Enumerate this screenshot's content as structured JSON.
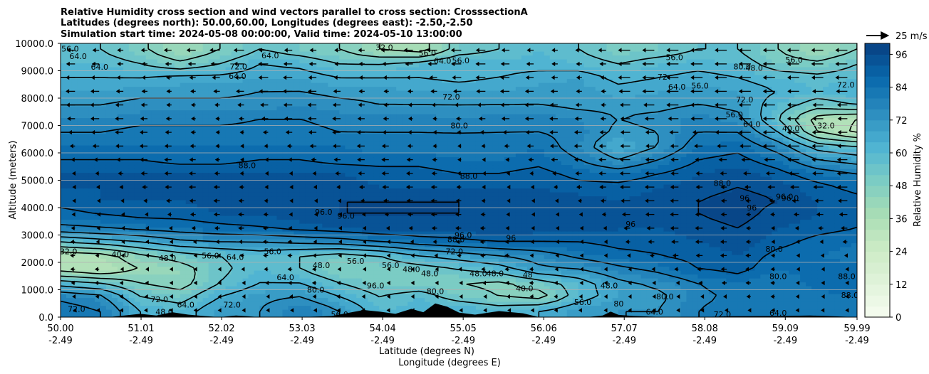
{
  "figure": {
    "title_lines": [
      "Relative Humidity cross section and wind vectors parallel to cross section: CrosssectionA",
      "Latitudes (degrees north): 50.00,60.00, Longitudes (degrees east): -2.50,-2.50",
      "Simulation start time: 2024-05-08 00:00:00, Valid time: 2024-05-10 13:00:00"
    ]
  },
  "chart_data": {
    "type": "heatmap",
    "ylabel": "Altitude (meters)",
    "xlabel_lines": [
      "Latitude (degrees N)",
      "Longitude (degrees E)"
    ],
    "xlim": [
      50.0,
      59.99
    ],
    "ylim": [
      0,
      10000
    ],
    "x_ticks": [
      {
        "lat": "50.00",
        "lon": "-2.49"
      },
      {
        "lat": "51.01",
        "lon": "-2.49"
      },
      {
        "lat": "52.02",
        "lon": "-2.49"
      },
      {
        "lat": "53.03",
        "lon": "-2.49"
      },
      {
        "lat": "54.04",
        "lon": "-2.49"
      },
      {
        "lat": "55.05",
        "lon": "-2.49"
      },
      {
        "lat": "56.06",
        "lon": "-2.49"
      },
      {
        "lat": "57.07",
        "lon": "-2.49"
      },
      {
        "lat": "58.08",
        "lon": "-2.49"
      },
      {
        "lat": "59.09",
        "lon": "-2.49"
      },
      {
        "lat": "59.99",
        "lon": "-2.49"
      }
    ],
    "y_ticks": [
      "0.0",
      "1000.0",
      "2000.0",
      "3000.0",
      "4000.0",
      "5000.0",
      "6000.0",
      "7000.0",
      "8000.0",
      "9000.0",
      "10000.0"
    ],
    "y_tick_values": [
      0,
      1000,
      2000,
      3000,
      4000,
      5000,
      6000,
      7000,
      8000,
      9000,
      10000
    ],
    "grid": "horizontal",
    "colorbar": {
      "label": "Relative Humidity %",
      "ticks": [
        "0",
        "12",
        "24",
        "36",
        "48",
        "60",
        "72",
        "84",
        "96"
      ],
      "tick_values": [
        0,
        12,
        24,
        36,
        48,
        60,
        72,
        84,
        96
      ],
      "range": [
        0,
        100
      ],
      "colors": [
        "#f7fcf0",
        "#e0f3db",
        "#ccebc5",
        "#a8ddb5",
        "#7bccc4",
        "#4eb3d3",
        "#2b8cbe",
        "#0868ac",
        "#084081"
      ]
    },
    "quiver_key": {
      "label": "25 m/s",
      "speed": 25
    },
    "wind_direction": "westward (toward lower latitude)",
    "rh_field": {
      "description_rows_altitude_m": [
        250,
        750,
        1250,
        1750,
        2250,
        2750,
        3250,
        3750,
        4250,
        4750,
        5250,
        5750,
        6250,
        6750,
        7250,
        7750,
        8250,
        8750,
        9250,
        9750
      ],
      "description_cols_lat": [
        50.0,
        50.5,
        51.0,
        51.5,
        52.0,
        52.5,
        53.0,
        53.5,
        54.0,
        54.5,
        55.0,
        55.5,
        56.0,
        56.5,
        57.0,
        57.5,
        58.0,
        58.5,
        59.0,
        59.5,
        59.99
      ],
      "values": [
        [
          84,
          80,
          64,
          60,
          70,
          72,
          80,
          72,
          60,
          62,
          64,
          60,
          64,
          70,
          72,
          72,
          80,
          84,
          82,
          80,
          80
        ],
        [
          78,
          74,
          56,
          52,
          64,
          70,
          72,
          64,
          56,
          60,
          52,
          48,
          44,
          60,
          68,
          70,
          78,
          82,
          80,
          82,
          84
        ],
        [
          60,
          56,
          48,
          44,
          56,
          64,
          64,
          56,
          50,
          50,
          48,
          46,
          52,
          60,
          70,
          74,
          80,
          84,
          80,
          86,
          88
        ],
        [
          36,
          32,
          40,
          44,
          54,
          60,
          56,
          48,
          50,
          52,
          56,
          60,
          70,
          72,
          78,
          82,
          88,
          90,
          84,
          86,
          86
        ],
        [
          34,
          36,
          46,
          52,
          56,
          60,
          56,
          52,
          56,
          64,
          68,
          72,
          76,
          82,
          86,
          88,
          90,
          92,
          86,
          84,
          82
        ],
        [
          56,
          60,
          64,
          70,
          72,
          72,
          74,
          76,
          80,
          84,
          86,
          88,
          88,
          88,
          90,
          90,
          92,
          94,
          90,
          86,
          84
        ],
        [
          78,
          80,
          82,
          84,
          86,
          88,
          90,
          92,
          94,
          94,
          94,
          96,
          94,
          94,
          92,
          92,
          94,
          96,
          92,
          90,
          88
        ],
        [
          86,
          88,
          90,
          90,
          92,
          92,
          94,
          96,
          96,
          96,
          96,
          96,
          96,
          94,
          94,
          94,
          96,
          98,
          94,
          92,
          90
        ],
        [
          90,
          92,
          92,
          92,
          94,
          94,
          96,
          96,
          96,
          96,
          96,
          94,
          94,
          94,
          92,
          94,
          96,
          98,
          96,
          92,
          90
        ],
        [
          92,
          92,
          94,
          94,
          94,
          94,
          94,
          94,
          92,
          92,
          92,
          92,
          92,
          90,
          90,
          92,
          94,
          96,
          94,
          90,
          86
        ],
        [
          92,
          92,
          92,
          92,
          92,
          92,
          92,
          92,
          90,
          90,
          88,
          88,
          90,
          86,
          84,
          88,
          92,
          94,
          90,
          84,
          80
        ],
        [
          88,
          88,
          88,
          86,
          86,
          88,
          88,
          86,
          86,
          86,
          84,
          84,
          86,
          80,
          72,
          80,
          88,
          90,
          84,
          72,
          68
        ],
        [
          84,
          84,
          84,
          84,
          84,
          84,
          84,
          84,
          82,
          82,
          82,
          82,
          84,
          76,
          64,
          72,
          84,
          86,
          76,
          60,
          56
        ],
        [
          80,
          80,
          82,
          82,
          82,
          82,
          82,
          80,
          80,
          80,
          80,
          80,
          80,
          78,
          70,
          72,
          80,
          80,
          64,
          40,
          30
        ],
        [
          76,
          76,
          78,
          78,
          78,
          80,
          80,
          78,
          78,
          78,
          76,
          78,
          78,
          76,
          72,
          74,
          78,
          74,
          56,
          36,
          32
        ],
        [
          72,
          72,
          74,
          74,
          74,
          74,
          76,
          74,
          72,
          72,
          72,
          72,
          72,
          70,
          70,
          70,
          72,
          70,
          60,
          52,
          56
        ],
        [
          68,
          68,
          70,
          70,
          70,
          72,
          72,
          70,
          70,
          68,
          68,
          68,
          70,
          70,
          66,
          68,
          70,
          68,
          64,
          60,
          64
        ],
        [
          64,
          64,
          64,
          66,
          66,
          68,
          68,
          64,
          64,
          64,
          62,
          64,
          66,
          68,
          62,
          64,
          66,
          64,
          60,
          58,
          60
        ],
        [
          60,
          60,
          56,
          50,
          56,
          64,
          62,
          56,
          56,
          60,
          64,
          62,
          62,
          60,
          56,
          60,
          62,
          60,
          52,
          50,
          56
        ],
        [
          56,
          56,
          50,
          40,
          48,
          56,
          52,
          48,
          40,
          36,
          52,
          56,
          60,
          56,
          50,
          52,
          56,
          56,
          48,
          40,
          48
        ]
      ]
    },
    "contour_labels": [
      {
        "text": "64.0",
        "lat": 50.22,
        "alt": 9530
      },
      {
        "text": "64.0",
        "lat": 50.49,
        "alt": 9140
      },
      {
        "text": "56.0",
        "lat": 50.12,
        "alt": 9800
      },
      {
        "text": "72.0",
        "lat": 52.23,
        "alt": 9150
      },
      {
        "text": "64.0",
        "lat": 52.22,
        "alt": 8800
      },
      {
        "text": "64.0",
        "lat": 52.63,
        "alt": 9560
      },
      {
        "text": "32.0",
        "lat": 54.06,
        "alt": 9860
      },
      {
        "text": "56.0",
        "lat": 54.6,
        "alt": 9650
      },
      {
        "text": "64.0",
        "lat": 54.79,
        "alt": 9370
      },
      {
        "text": "56.0",
        "lat": 55.02,
        "alt": 9380
      },
      {
        "text": "72.0",
        "lat": 54.9,
        "alt": 8050
      },
      {
        "text": "80.0",
        "lat": 55.0,
        "alt": 7000
      },
      {
        "text": "72",
        "lat": 57.55,
        "alt": 8780
      },
      {
        "text": "64.0",
        "lat": 57.73,
        "alt": 8410
      },
      {
        "text": "88.0",
        "lat": 58.3,
        "alt": 4900
      },
      {
        "text": "96",
        "lat": 58.58,
        "alt": 4350
      },
      {
        "text": "96",
        "lat": 58.67,
        "alt": 4000
      },
      {
        "text": "96.0",
        "lat": 59.08,
        "alt": 4400
      },
      {
        "text": "72.0",
        "lat": 58.58,
        "alt": 7950
      },
      {
        "text": "64.0",
        "lat": 58.67,
        "alt": 7050
      },
      {
        "text": "56.0",
        "lat": 58.45,
        "alt": 7400
      },
      {
        "text": "40.0",
        "lat": 59.16,
        "alt": 6900
      },
      {
        "text": "32.0",
        "lat": 59.6,
        "alt": 7000
      },
      {
        "text": "88.0",
        "lat": 55.12,
        "alt": 5150
      },
      {
        "text": "88.0",
        "lat": 52.34,
        "alt": 5550
      },
      {
        "text": "96.0",
        "lat": 53.3,
        "alt": 3850
      },
      {
        "text": "96.0",
        "lat": 53.58,
        "alt": 3700
      },
      {
        "text": "96.0",
        "lat": 55.05,
        "alt": 3000
      },
      {
        "text": "96",
        "lat": 55.65,
        "alt": 2900
      },
      {
        "text": "96",
        "lat": 57.15,
        "alt": 3400
      },
      {
        "text": "88.0",
        "lat": 54.96,
        "alt": 2850
      },
      {
        "text": "72.0",
        "lat": 54.94,
        "alt": 2400
      },
      {
        "text": "32.0",
        "lat": 50.1,
        "alt": 2400
      },
      {
        "text": "40.0",
        "lat": 50.75,
        "alt": 2300
      },
      {
        "text": "48.0",
        "lat": 51.34,
        "alt": 2150
      },
      {
        "text": "56.0",
        "lat": 51.88,
        "alt": 2250
      },
      {
        "text": "64.0",
        "lat": 52.19,
        "alt": 2200
      },
      {
        "text": "56.0",
        "lat": 52.66,
        "alt": 2400
      },
      {
        "text": "48.0",
        "lat": 53.27,
        "alt": 1900
      },
      {
        "text": "56.0",
        "lat": 53.7,
        "alt": 2050
      },
      {
        "text": "48.0",
        "lat": 54.4,
        "alt": 1750
      },
      {
        "text": "48.0",
        "lat": 54.63,
        "alt": 1600
      },
      {
        "text": "48.0",
        "lat": 55.24,
        "alt": 1600
      },
      {
        "text": "48.0",
        "lat": 55.45,
        "alt": 1600
      },
      {
        "text": "48",
        "lat": 55.86,
        "alt": 1550
      },
      {
        "text": "56.0",
        "lat": 54.14,
        "alt": 1900
      },
      {
        "text": "64.0",
        "lat": 52.82,
        "alt": 1450
      },
      {
        "text": "72.0",
        "lat": 51.24,
        "alt": 650
      },
      {
        "text": "64.0",
        "lat": 51.57,
        "alt": 450
      },
      {
        "text": "72.0",
        "lat": 52.15,
        "alt": 450
      },
      {
        "text": "72.0",
        "lat": 50.2,
        "alt": 300
      },
      {
        "text": "48.0",
        "lat": 51.3,
        "alt": 200
      },
      {
        "text": "56.0",
        "lat": 53.5,
        "alt": 100
      },
      {
        "text": "80.0",
        "lat": 53.2,
        "alt": 1000
      },
      {
        "text": "96.0",
        "lat": 53.95,
        "alt": 1150
      },
      {
        "text": "80.0",
        "lat": 54.7,
        "alt": 950
      },
      {
        "text": "40.0",
        "lat": 55.82,
        "alt": 1050
      },
      {
        "text": "56.0",
        "lat": 56.55,
        "alt": 550
      },
      {
        "text": "48.0",
        "lat": 56.88,
        "alt": 1150
      },
      {
        "text": "80",
        "lat": 57.0,
        "alt": 500
      },
      {
        "text": "80.0",
        "lat": 57.58,
        "alt": 750
      },
      {
        "text": "64.0",
        "lat": 57.45,
        "alt": 200
      },
      {
        "text": "72.0",
        "lat": 58.3,
        "alt": 100
      },
      {
        "text": "80.0",
        "lat": 59.0,
        "alt": 1500
      },
      {
        "text": "88.0",
        "lat": 59.86,
        "alt": 1500
      },
      {
        "text": "64.0",
        "lat": 59.0,
        "alt": 150
      },
      {
        "text": "88.0",
        "lat": 59.9,
        "alt": 800
      },
      {
        "text": "80.0",
        "lat": 58.95,
        "alt": 2500
      },
      {
        "text": "96.0",
        "lat": 59.15,
        "alt": 4350
      },
      {
        "text": "56.0",
        "lat": 57.7,
        "alt": 9500
      },
      {
        "text": "48.0",
        "lat": 58.7,
        "alt": 9100
      },
      {
        "text": "56.0",
        "lat": 59.2,
        "alt": 9400
      },
      {
        "text": "72.0",
        "lat": 59.85,
        "alt": 8500
      },
      {
        "text": "56.0",
        "lat": 58.02,
        "alt": 8450
      },
      {
        "text": "80.0",
        "lat": 58.55,
        "alt": 9150
      }
    ]
  }
}
